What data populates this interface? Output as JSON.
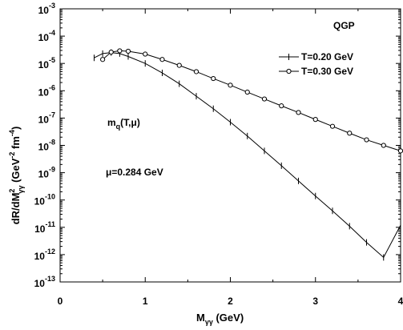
{
  "chart_data": {
    "type": "line",
    "title": "",
    "xlabel": "M",
    "xlabel_sub": "γγ",
    "xlabel_unit": " (GeV)",
    "ylabel": "dR/dM",
    "ylabel_sub": "γγ",
    "ylabel_sup": "2",
    "ylabel_unit_pre": " (GeV",
    "ylabel_unit_sup1": "-2",
    "ylabel_unit_mid": " fm",
    "ylabel_unit_sup2": "-4",
    "ylabel_unit_post": ")",
    "xlim": [
      0,
      4
    ],
    "ylim_log10": [
      -13,
      -3
    ],
    "yscale": "log",
    "x_ticks": [
      "0",
      "1",
      "2",
      "3",
      "4"
    ],
    "y_tick_exponents": [
      "-3",
      "-4",
      "-5",
      "-6",
      "-7",
      "-8",
      "-9",
      "-10",
      "-11",
      "-12",
      "-13"
    ],
    "y_tick_base": "10",
    "grid": false,
    "legend_position": "top-right",
    "annotations": {
      "phase": "QGP",
      "mass_main": "m",
      "mass_sub": "q",
      "mass_args": "(T,μ)",
      "chem_pot": "μ=0.284 GeV"
    },
    "series": [
      {
        "name": "T=0.20 GeV",
        "marker": "plus",
        "x": [
          0.4,
          0.5,
          0.6,
          0.7,
          0.8,
          1.0,
          1.2,
          1.4,
          1.6,
          1.8,
          2.0,
          2.2,
          2.4,
          2.6,
          2.8,
          3.0,
          3.2,
          3.4,
          3.6,
          3.8,
          4.0
        ],
        "y": [
          1.6e-05,
          2.3e-05,
          2.5e-05,
          2.3e-05,
          1.8e-05,
          1e-05,
          4.5e-06,
          1.8e-06,
          6.3e-07,
          2.2e-07,
          7.1e-08,
          2.2e-08,
          6.3e-09,
          1.8e-09,
          5e-10,
          1.4e-10,
          4e-11,
          1.1e-11,
          2.8e-12,
          7.9e-13,
          1.2e-11
        ]
      },
      {
        "name": "T=0.30 GeV",
        "marker": "circle",
        "x": [
          0.5,
          0.6,
          0.7,
          0.8,
          1.0,
          1.2,
          1.4,
          1.6,
          1.8,
          2.0,
          2.2,
          2.4,
          2.6,
          2.8,
          3.0,
          3.2,
          3.4,
          3.6,
          3.8,
          4.0
        ],
        "y": [
          1.4e-05,
          2.6e-05,
          2.9e-05,
          2.8e-05,
          2.2e-05,
          1.4e-05,
          8.5e-06,
          5e-06,
          2.8e-06,
          1.6e-06,
          8.9e-07,
          5e-07,
          2.8e-07,
          1.6e-07,
          8.9e-08,
          5e-08,
          2.8e-08,
          1.6e-08,
          1e-08,
          6.3e-09
        ]
      }
    ]
  }
}
